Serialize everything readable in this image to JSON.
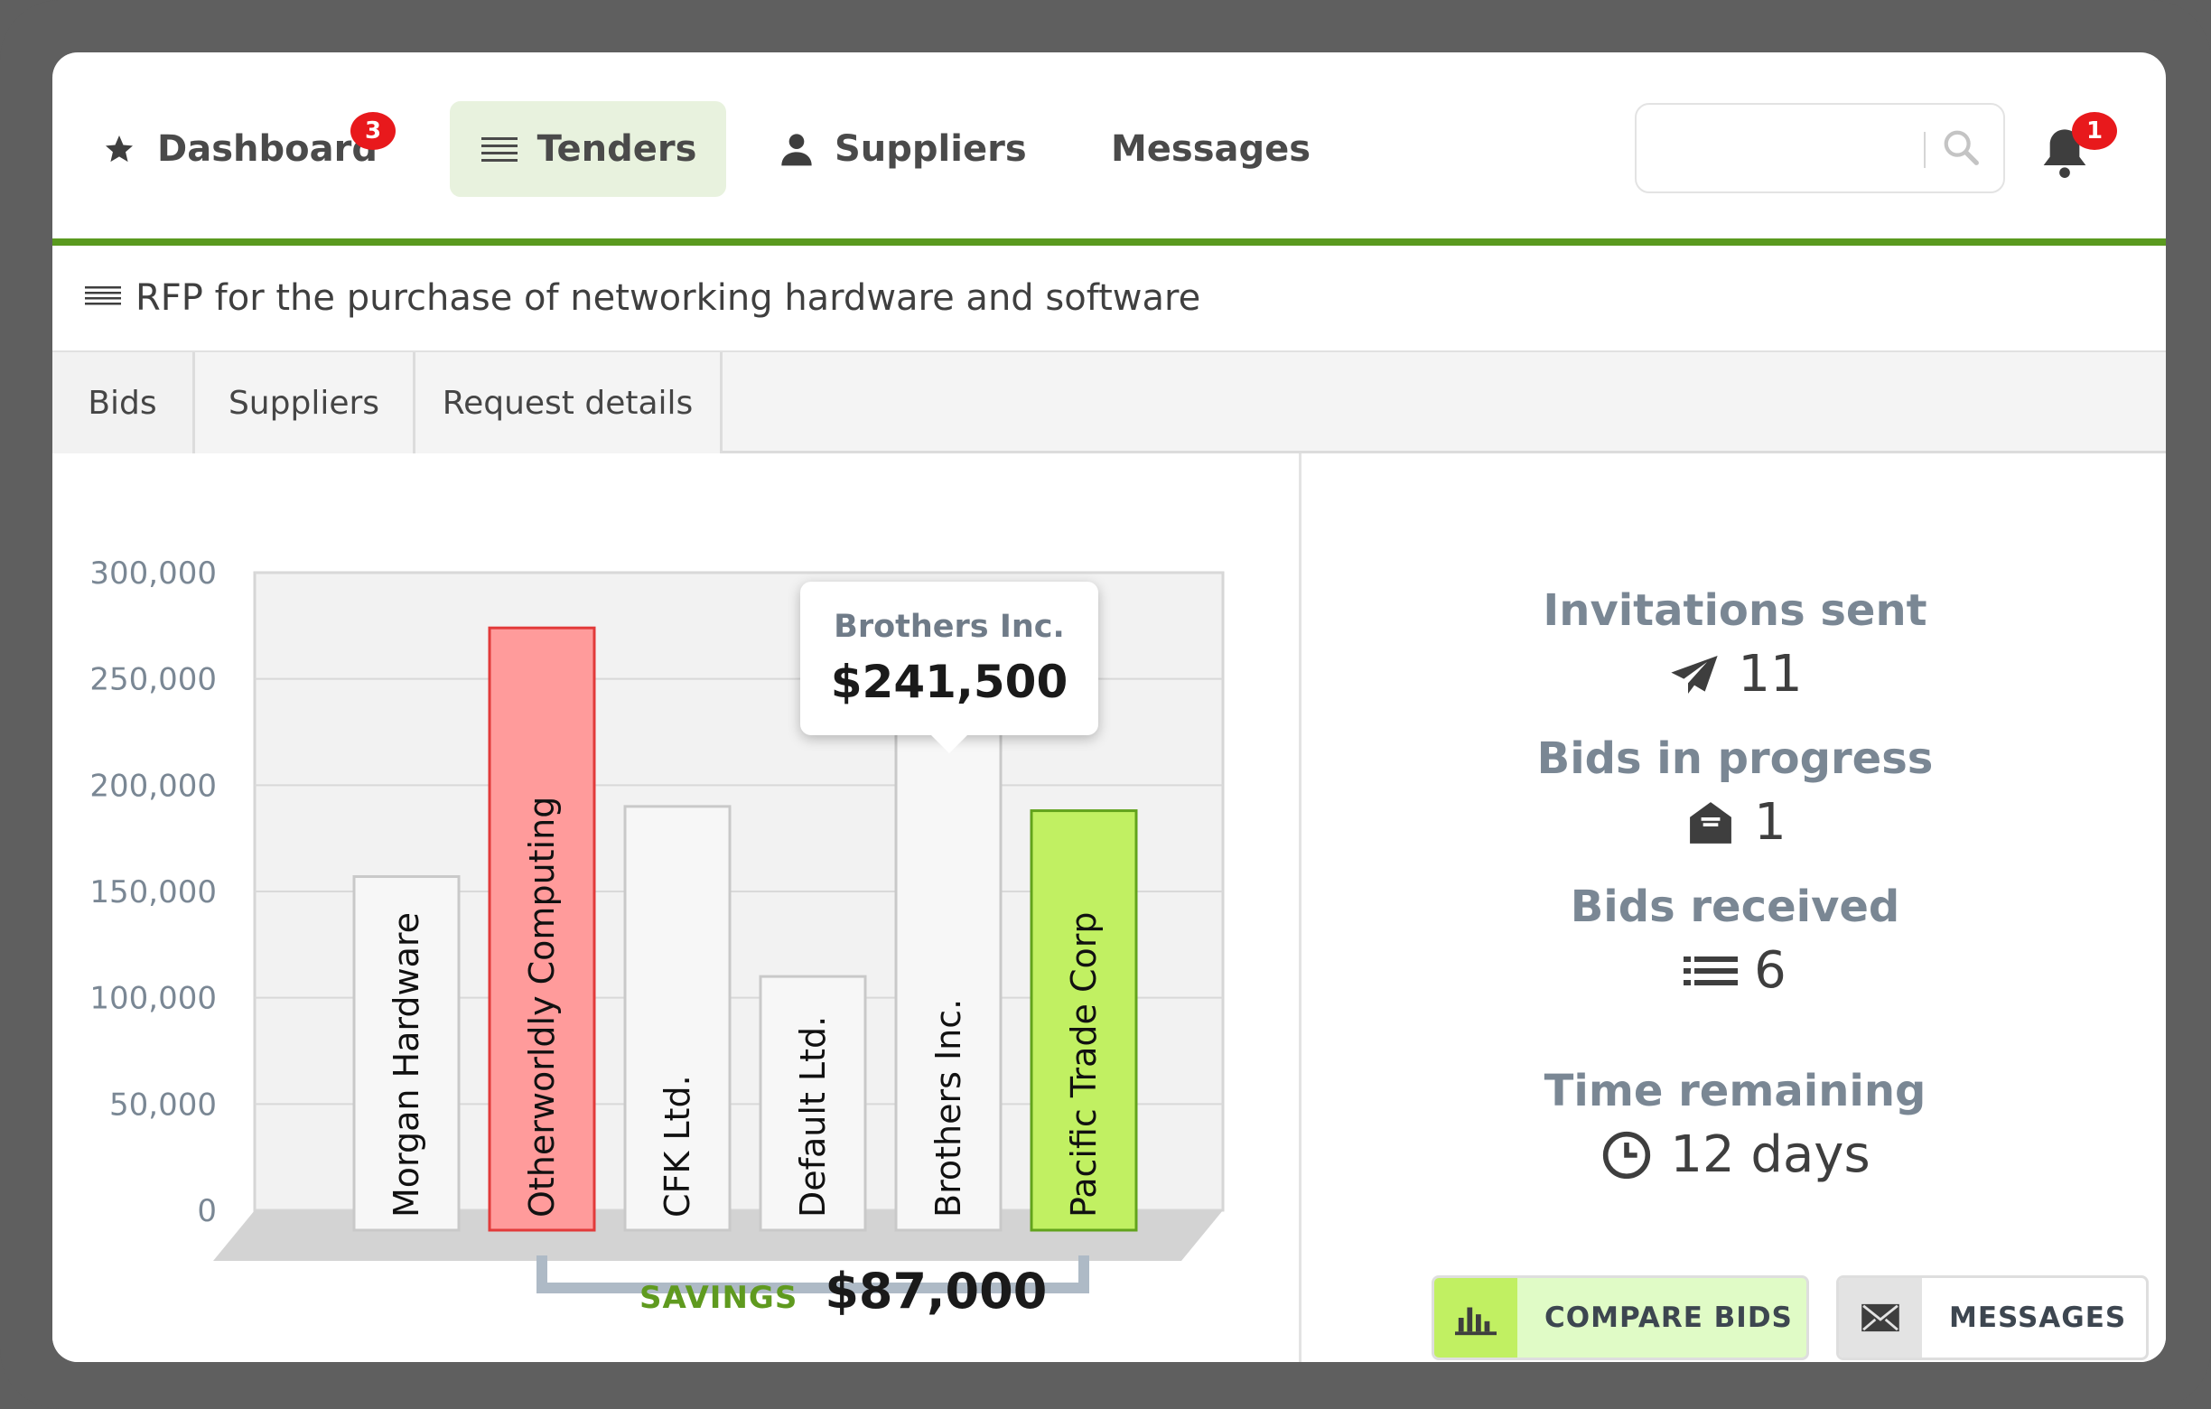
{
  "nav": {
    "items": [
      {
        "label": "Dashboard",
        "badge": "3",
        "icon": "star-icon"
      },
      {
        "label": "Tenders",
        "icon": "list-icon",
        "active": true
      },
      {
        "label": "Suppliers",
        "icon": "user-icon"
      },
      {
        "label": "Messages"
      }
    ],
    "search": {
      "placeholder": ""
    },
    "notifications": {
      "badge": "1",
      "icon": "bell-icon"
    }
  },
  "page": {
    "title": "RFP for the purchase of networking hardware and software",
    "more_icon": "ellipsis-icon"
  },
  "tabs": [
    {
      "label": "Bids",
      "active": true
    },
    {
      "label": "Suppliers"
    },
    {
      "label": "Request details"
    }
  ],
  "chart_data": {
    "type": "bar",
    "categories": [
      "Morgan Hardware",
      "Otherworldly Computing",
      "CFK Ltd.",
      "Default Ltd.",
      "Brothers Inc.",
      "Pacific Trade Corp"
    ],
    "values": [
      157000,
      274000,
      190000,
      110000,
      241500,
      188000
    ],
    "highlight": {
      "Otherworldly Computing": "#ff9b9b",
      "Pacific Trade Corp": "#c1f062"
    },
    "ylim": [
      0,
      300000
    ],
    "yticks": [
      "0",
      "50,000",
      "100,000",
      "150,000",
      "200,000",
      "250,000",
      "300,000"
    ],
    "grid": true,
    "tooltip": {
      "name": "Brothers Inc.",
      "value": "$241,500"
    },
    "savings": {
      "label": "SAVINGS",
      "value": "$87,000"
    }
  },
  "stats": {
    "invitations": {
      "label": "Invitations sent",
      "value": "11",
      "icon": "paper-plane-icon"
    },
    "in_progress": {
      "label": "Bids in progress",
      "value": "1",
      "icon": "open-envelope-icon"
    },
    "received": {
      "label": "Bids received",
      "value": "6",
      "icon": "list-grid-icon"
    },
    "time": {
      "label": "Time remaining",
      "value": "12 days",
      "icon": "clock-icon"
    }
  },
  "buttons": {
    "compare": {
      "label": "COMPARE BIDS",
      "icon": "bar-chart-icon",
      "accent": "#c1f062"
    },
    "messages": {
      "label": "MESSAGES",
      "icon": "envelope-icon"
    }
  },
  "colors": {
    "brand_green": "#5a9a1f",
    "badge_red": "#e8191c"
  }
}
